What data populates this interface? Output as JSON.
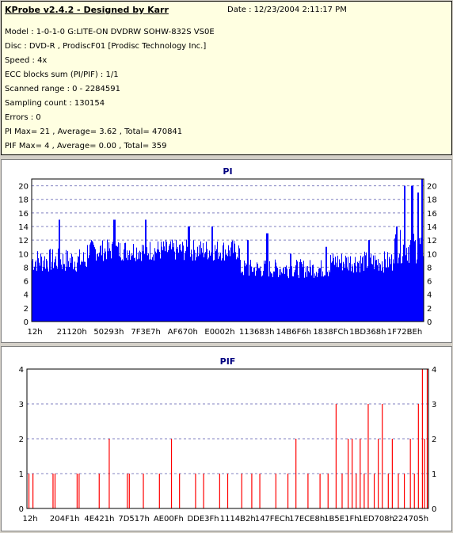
{
  "info": {
    "title": "KProbe v2.4.2 - Designed by Karr",
    "date": "Date : 12/23/2004 2:11:17 PM",
    "lines": [
      "Model : 1-0-1-0 G:LITE-ON DVDRW SOHW-832S  VS0E",
      "Disc : DVD-R , ProdiscF01 [Prodisc Technology Inc.]",
      "Speed : 4x",
      "ECC blocks sum (PI/PIF) : 1/1",
      "Scanned range : 0 - 2284591",
      "Sampling count : 130154",
      "Errors : 0",
      "PI Max= 21 , Average= 3.62 , Total= 470841",
      "PIF Max= 4 , Average= 0.00 , Total= 359"
    ]
  },
  "colors": {
    "pi_bars": "#0000ff",
    "pif_bars": "#ff0000",
    "title": "#000080",
    "background": "#d4d0c8"
  },
  "chart_data": [
    {
      "type": "bar",
      "title": "PI",
      "ylim": [
        0,
        21
      ],
      "yticks": [
        0,
        2,
        4,
        6,
        8,
        10,
        12,
        14,
        16,
        18,
        20
      ],
      "xticks": [
        "12h",
        "21120h",
        "50293h",
        "7F3E7h",
        "AF670h",
        "E0002h",
        "113683h",
        "14B6F6h",
        "1838FCh",
        "1BD368h",
        "1F72BEh"
      ],
      "grid": true,
      "segments": [
        {
          "x": [
            0.0,
            0.14
          ],
          "base": 9.0,
          "jitter": 1.8
        },
        {
          "x": [
            0.14,
            0.53
          ],
          "base": 10.5,
          "jitter": 1.6
        },
        {
          "x": [
            0.53,
            0.76
          ],
          "base": 7.8,
          "jitter": 1.4
        },
        {
          "x": [
            0.76,
            0.92
          ],
          "base": 8.8,
          "jitter": 1.6
        },
        {
          "x": [
            0.92,
            1.0
          ],
          "base": 11.0,
          "jitter": 2.5
        }
      ],
      "peaks": [
        {
          "x": 0.07,
          "y": 15
        },
        {
          "x": 0.21,
          "y": 15
        },
        {
          "x": 0.29,
          "y": 15
        },
        {
          "x": 0.4,
          "y": 14
        },
        {
          "x": 0.46,
          "y": 14
        },
        {
          "x": 0.55,
          "y": 12
        },
        {
          "x": 0.6,
          "y": 13
        },
        {
          "x": 0.66,
          "y": 10
        },
        {
          "x": 0.75,
          "y": 11
        },
        {
          "x": 0.86,
          "y": 12
        },
        {
          "x": 0.93,
          "y": 14
        },
        {
          "x": 0.95,
          "y": 20
        },
        {
          "x": 0.97,
          "y": 20
        },
        {
          "x": 0.985,
          "y": 19
        },
        {
          "x": 0.995,
          "y": 21
        }
      ]
    },
    {
      "type": "bar",
      "title": "PIF",
      "ylim": [
        0,
        4
      ],
      "yticks": [
        0,
        1,
        2,
        3,
        4
      ],
      "xticks": [
        "12h",
        "204F1h",
        "4E421h",
        "7D517h",
        "AE00Fh",
        "DDE3Fh",
        "1114B2h",
        "147FECh",
        "17ECE8h",
        "1B5E1Fh",
        "1ED708h",
        "224705h"
      ],
      "grid": true,
      "spikes": [
        {
          "x": 0.005,
          "y": 1
        },
        {
          "x": 0.015,
          "y": 1
        },
        {
          "x": 0.065,
          "y": 1
        },
        {
          "x": 0.07,
          "y": 1
        },
        {
          "x": 0.125,
          "y": 1
        },
        {
          "x": 0.13,
          "y": 1
        },
        {
          "x": 0.18,
          "y": 1
        },
        {
          "x": 0.205,
          "y": 2
        },
        {
          "x": 0.25,
          "y": 1
        },
        {
          "x": 0.255,
          "y": 1
        },
        {
          "x": 0.29,
          "y": 1
        },
        {
          "x": 0.33,
          "y": 1
        },
        {
          "x": 0.36,
          "y": 2
        },
        {
          "x": 0.38,
          "y": 1
        },
        {
          "x": 0.42,
          "y": 1
        },
        {
          "x": 0.44,
          "y": 1
        },
        {
          "x": 0.48,
          "y": 1
        },
        {
          "x": 0.5,
          "y": 1
        },
        {
          "x": 0.535,
          "y": 1
        },
        {
          "x": 0.56,
          "y": 1
        },
        {
          "x": 0.58,
          "y": 1
        },
        {
          "x": 0.62,
          "y": 1
        },
        {
          "x": 0.65,
          "y": 1
        },
        {
          "x": 0.67,
          "y": 2
        },
        {
          "x": 0.7,
          "y": 1
        },
        {
          "x": 0.73,
          "y": 1
        },
        {
          "x": 0.75,
          "y": 1
        },
        {
          "x": 0.77,
          "y": 3
        },
        {
          "x": 0.785,
          "y": 1
        },
        {
          "x": 0.8,
          "y": 2
        },
        {
          "x": 0.81,
          "y": 2
        },
        {
          "x": 0.82,
          "y": 1
        },
        {
          "x": 0.83,
          "y": 2
        },
        {
          "x": 0.84,
          "y": 1
        },
        {
          "x": 0.85,
          "y": 3
        },
        {
          "x": 0.865,
          "y": 1
        },
        {
          "x": 0.875,
          "y": 2
        },
        {
          "x": 0.885,
          "y": 3
        },
        {
          "x": 0.9,
          "y": 1
        },
        {
          "x": 0.91,
          "y": 2
        },
        {
          "x": 0.925,
          "y": 1
        },
        {
          "x": 0.94,
          "y": 1
        },
        {
          "x": 0.955,
          "y": 2
        },
        {
          "x": 0.965,
          "y": 1
        },
        {
          "x": 0.975,
          "y": 3
        },
        {
          "x": 0.985,
          "y": 4
        },
        {
          "x": 0.99,
          "y": 2
        },
        {
          "x": 0.997,
          "y": 4
        }
      ]
    }
  ]
}
